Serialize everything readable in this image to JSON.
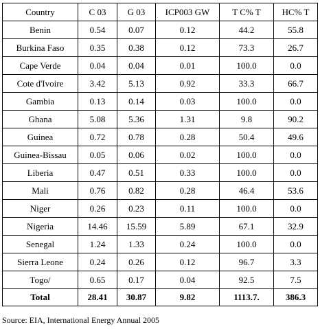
{
  "table": {
    "headers": [
      "Country",
      "C 03",
      "G 03",
      "ICP003 GW",
      "T C% T",
      "HC% T"
    ],
    "rows": [
      [
        "Benin",
        "0.54",
        "0.07",
        "0.12",
        "44.2",
        "55.8"
      ],
      [
        "Burkina Faso",
        "0.35",
        "0.38",
        "0.12",
        "73.3",
        "26.7"
      ],
      [
        "Cape Verde",
        "0.04",
        "0.04",
        "0.01",
        "100.0",
        "0.0"
      ],
      [
        "Cote d'Ivoire",
        "3.42",
        "5.13",
        "0.92",
        "33.3",
        "66.7"
      ],
      [
        "Gambia",
        "0.13",
        "0.14",
        "0.03",
        "100.0",
        "0.0"
      ],
      [
        "Ghana",
        "5.08",
        "5.36",
        "1.31",
        "9.8",
        "90.2"
      ],
      [
        "Guinea",
        "0.72",
        "0.78",
        "0.28",
        "50.4",
        "49.6"
      ],
      [
        "Guinea-Bissau",
        "0.05",
        "0.06",
        "0.02",
        "100.0",
        "0.0"
      ],
      [
        "Liberia",
        "0.47",
        "0.51",
        "0.33",
        "100.0",
        "0.0"
      ],
      [
        "Mali",
        "0.76",
        "0.82",
        "0.28",
        "46.4",
        "53.6"
      ],
      [
        "Niger",
        "0.26",
        "0.23",
        "0.11",
        "100.0",
        "0.0"
      ],
      [
        "Nigeria",
        "14.46",
        "15.59",
        "5.89",
        "67.1",
        "32.9"
      ],
      [
        "Senegal",
        "1.24",
        "1.33",
        "0.24",
        "100.0",
        "0.0"
      ],
      [
        "Sierra Leone",
        "0.24",
        "0.26",
        "0.12",
        "96.7",
        "3.3"
      ],
      [
        "Togo/",
        "0.65",
        "0.17",
        "0.04",
        "92.5",
        "7.5"
      ]
    ],
    "total": [
      "Total",
      "28.41",
      "30.87",
      "9.82",
      "1113.7.",
      "386.3"
    ]
  },
  "source_note": "Source: EIA, International Energy Annual 2005"
}
